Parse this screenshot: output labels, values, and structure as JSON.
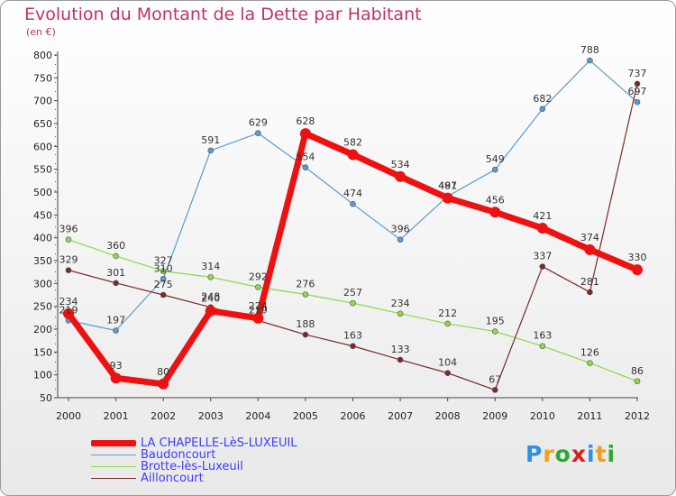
{
  "title": "Evolution du Montant de la Dette par Habitant",
  "subtitle": "(en €)",
  "logo": [
    "P",
    "r",
    "o",
    "x",
    "i",
    "t",
    "i"
  ],
  "logo_colors": [
    "#2f8ee6",
    "#f0a020",
    "#30a830",
    "#d62020",
    "#2f8ee6",
    "#f0a020",
    "#30a830"
  ],
  "chart_data": {
    "type": "line",
    "x": [
      "2000",
      "2001",
      "2002",
      "2003",
      "2004",
      "2005",
      "2006",
      "2007",
      "2008",
      "2009",
      "2010",
      "2011",
      "2012"
    ],
    "ylim": [
      50,
      800
    ],
    "yticks": [
      "50",
      "100",
      "150",
      "200",
      "250",
      "300",
      "350",
      "400",
      "450",
      "500",
      "550",
      "600",
      "650",
      "700",
      "750",
      "800"
    ],
    "grid": false,
    "legend_position": "bottom-left",
    "series": [
      {
        "name": "LA CHAPELLE-LèS-LUXEUIL",
        "color": "#ee1111",
        "width": 7,
        "marker_radius": 6,
        "show_labels": true,
        "values": [
          234,
          93,
          80,
          240,
          224,
          628,
          582,
          534,
          487,
          456,
          421,
          374,
          330
        ],
        "labels": [
          "234",
          "93",
          "80",
          "240",
          "224",
          "628",
          "582",
          "534",
          "487",
          "456",
          "421",
          "374",
          "330"
        ]
      },
      {
        "name": "Baudoncourt",
        "color": "#5a9bd5",
        "width": 1.2,
        "marker_radius": 3,
        "show_labels": true,
        "values": [
          219,
          197,
          310,
          591,
          629,
          554,
          474,
          396,
          491,
          549,
          682,
          788,
          697
        ],
        "labels": [
          "219",
          "197",
          "310",
          "591",
          "629",
          "554",
          "474",
          "396",
          "491",
          "549",
          "682",
          "788",
          "697"
        ]
      },
      {
        "name": "Brotte-lès-Luxeuil",
        "color": "#8ed84a",
        "width": 1.2,
        "marker_radius": 3,
        "show_labels": true,
        "values": [
          396,
          360,
          327,
          314,
          292,
          276,
          257,
          234,
          212,
          195,
          163,
          126,
          86
        ],
        "labels": [
          "396",
          "360",
          "327",
          "314",
          "292",
          "276",
          "257",
          "234",
          "212",
          "195",
          "163",
          "126",
          "86"
        ]
      },
      {
        "name": "Ailloncourt",
        "color": "#7a2a2a",
        "width": 1.2,
        "marker_radius": 3,
        "show_labels": true,
        "values": [
          329,
          301,
          275,
          248,
          219,
          188,
          163,
          133,
          104,
          67,
          337,
          281,
          737
        ],
        "labels": [
          "329",
          "301",
          "275",
          "248",
          "219",
          "188",
          "163",
          "133",
          "104",
          "67",
          "337",
          "281",
          "737"
        ]
      }
    ]
  }
}
